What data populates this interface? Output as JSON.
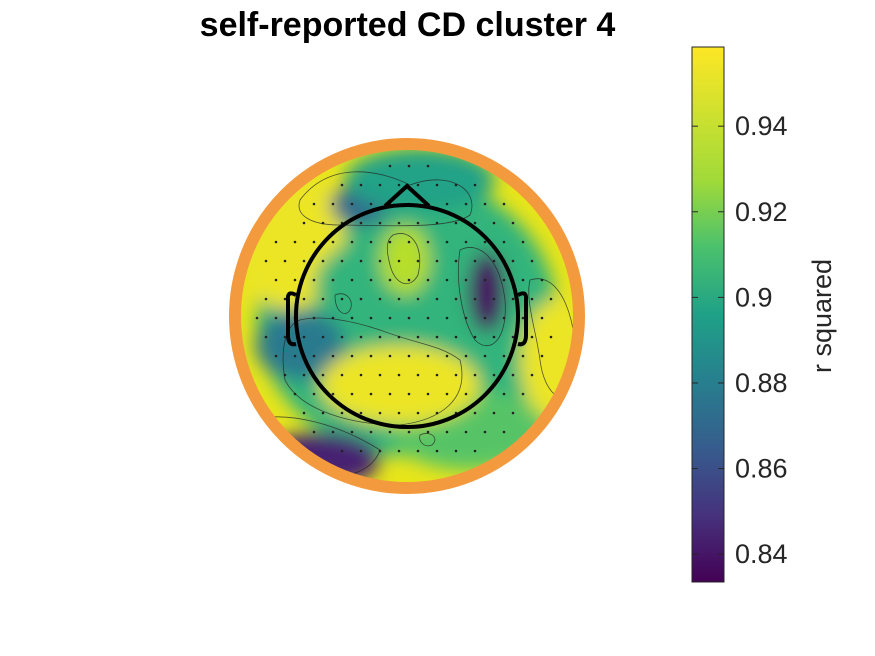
{
  "chart_data": {
    "type": "heatmap",
    "title": "self-reported CD cluster 4",
    "colorbar": {
      "label": "r squared",
      "range": [
        0.8335,
        0.9585
      ],
      "ticks": [
        0.84,
        0.86,
        0.88,
        0.9,
        0.92,
        0.94
      ],
      "tick_labels": [
        "0.84",
        "0.86",
        "0.88",
        "0.9",
        "0.92",
        "0.94"
      ],
      "colormap": "viridis"
    },
    "grid": false,
    "regions": [
      {
        "id": "left-frontal",
        "value": 0.955
      },
      {
        "id": "frontal-midline",
        "value": 0.915
      },
      {
        "id": "frontal-upper-left",
        "value": 0.875
      },
      {
        "id": "frontal-pole",
        "value": 0.905
      },
      {
        "id": "central-midline",
        "value": 0.945
      },
      {
        "id": "right-temporal",
        "value": 0.838
      },
      {
        "id": "left-temporal",
        "value": 0.885
      },
      {
        "id": "posterior",
        "value": 0.955
      },
      {
        "id": "occipital-left",
        "value": 0.845
      },
      {
        "id": "right-edge",
        "value": 0.955
      }
    ]
  },
  "style": {
    "outline_ring_color": "#f39a3f",
    "head_color": "#000000",
    "background": "#ffffff"
  }
}
